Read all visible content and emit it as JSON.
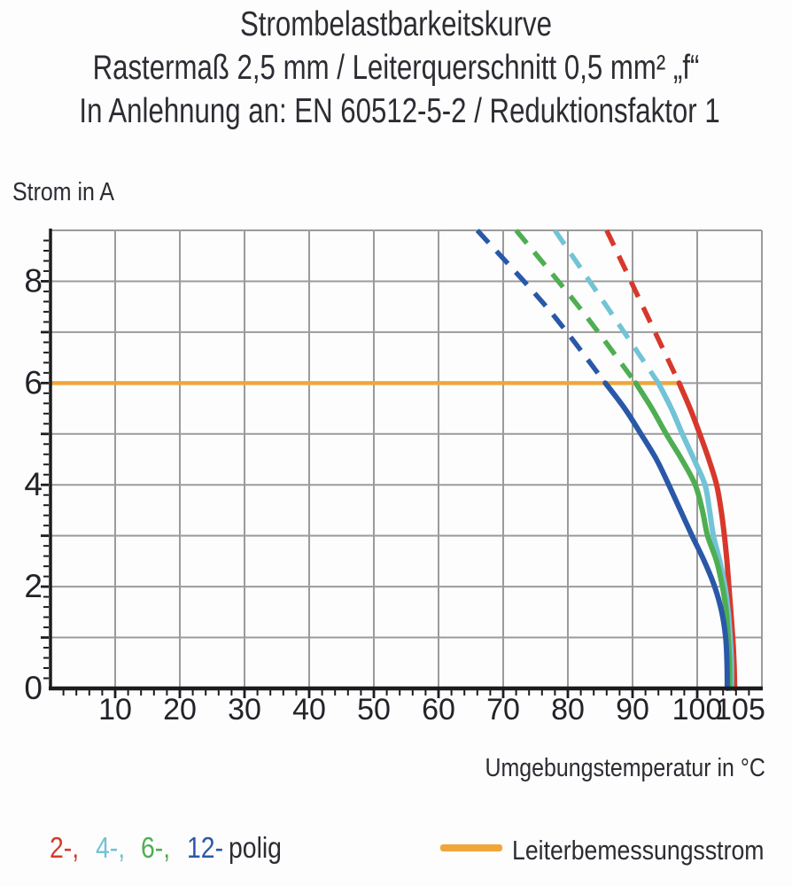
{
  "page": {
    "background": "#fdfdfd",
    "text_color": "#2c2c33"
  },
  "chart_data": {
    "type": "line",
    "title": "Strombelastbarkeitskurve",
    "subtitle": "Rastermaß 2,5 mm / Leiterquerschnitt 0,5 mm² „f“",
    "subtitle2": "In Anlehnung an: EN 60512-5-2 / Reduktionsfaktor 1",
    "grid": "on",
    "grid_color": "#9b9b9b",
    "axis_color": "#1c1c1f",
    "tick_label_color": "#222228",
    "x_axis": {
      "label": "Umgebungstemperatur in °C",
      "min": 0,
      "max": 110,
      "gridline_step": 10,
      "minor_tick_step": 2,
      "tick_labels": [
        10,
        20,
        30,
        40,
        50,
        60,
        70,
        80,
        90,
        100,
        105
      ]
    },
    "y_axis": {
      "label": "Strom in A",
      "min": 0,
      "max": 9,
      "gridline_step": 1,
      "minor_tick_step": 0.2,
      "tick_labels": [
        0,
        2,
        4,
        6,
        8
      ]
    },
    "reference_line": {
      "label": "Leiterbemessungsstrom",
      "y": 6,
      "x_start": 0,
      "x_end": 97.2,
      "color": "#f0a63a"
    },
    "series": [
      {
        "name": "2-polig",
        "color": "#d8382c",
        "dashed": [
          [
            86,
            9
          ],
          [
            91.8,
            7.45
          ],
          [
            97.2,
            6
          ]
        ],
        "solid": [
          [
            97.2,
            6
          ],
          [
            98.9,
            5.5
          ],
          [
            100.4,
            5
          ],
          [
            101.8,
            4.5
          ],
          [
            103,
            4
          ],
          [
            103.7,
            3.5
          ],
          [
            104.2,
            3
          ],
          [
            104.6,
            2.5
          ],
          [
            104.9,
            2
          ],
          [
            105.2,
            1.5
          ],
          [
            105.5,
            1
          ],
          [
            105.7,
            0.5
          ],
          [
            105.8,
            0
          ]
        ]
      },
      {
        "name": "4-polig",
        "color": "#72c3d6",
        "dashed": [
          [
            78,
            9
          ],
          [
            86.3,
            7.45
          ],
          [
            94,
            6
          ]
        ],
        "solid": [
          [
            94,
            6
          ],
          [
            96,
            5.5
          ],
          [
            97.7,
            5
          ],
          [
            99.5,
            4.5
          ],
          [
            101.2,
            4
          ],
          [
            101.9,
            3.5
          ],
          [
            102.5,
            3
          ],
          [
            103.5,
            2.5
          ],
          [
            104.3,
            2
          ],
          [
            104.8,
            1.5
          ],
          [
            105.1,
            1
          ],
          [
            105.3,
            0.5
          ],
          [
            105.3,
            0
          ]
        ]
      },
      {
        "name": "6-polig",
        "color": "#4fae52",
        "dashed": [
          [
            72,
            9
          ],
          [
            82,
            7.45
          ],
          [
            90.5,
            6
          ]
        ],
        "solid": [
          [
            90.5,
            6
          ],
          [
            93,
            5.5
          ],
          [
            95.2,
            5
          ],
          [
            97.6,
            4.5
          ],
          [
            99.7,
            4
          ],
          [
            100.8,
            3.5
          ],
          [
            101.6,
            3
          ],
          [
            103,
            2.5
          ],
          [
            103.9,
            2
          ],
          [
            104.5,
            1.5
          ],
          [
            104.8,
            1
          ],
          [
            105,
            0.5
          ],
          [
            105,
            0
          ]
        ]
      },
      {
        "name": "12-polig",
        "color": "#2a58a8",
        "dashed": [
          [
            66,
            9
          ],
          [
            77,
            7.45
          ],
          [
            85.8,
            6
          ]
        ],
        "solid": [
          [
            85.8,
            6
          ],
          [
            88.8,
            5.5
          ],
          [
            91.3,
            5
          ],
          [
            93.7,
            4.5
          ],
          [
            95.6,
            4
          ],
          [
            97.4,
            3.5
          ],
          [
            99.2,
            3
          ],
          [
            101.1,
            2.5
          ],
          [
            102.7,
            2
          ],
          [
            103.8,
            1.5
          ],
          [
            104.4,
            1
          ],
          [
            104.6,
            0.5
          ],
          [
            104.65,
            0
          ]
        ]
      }
    ]
  },
  "legend": {
    "items": [
      {
        "label": "2-,",
        "color": "#d8382c"
      },
      {
        "label": "4-,",
        "color": "#72c3d6"
      },
      {
        "label": "6-,",
        "color": "#4fae52"
      },
      {
        "label": "12-",
        "color": "#2a58a8"
      },
      {
        "label": "polig",
        "color": "#2c2c33"
      }
    ]
  }
}
